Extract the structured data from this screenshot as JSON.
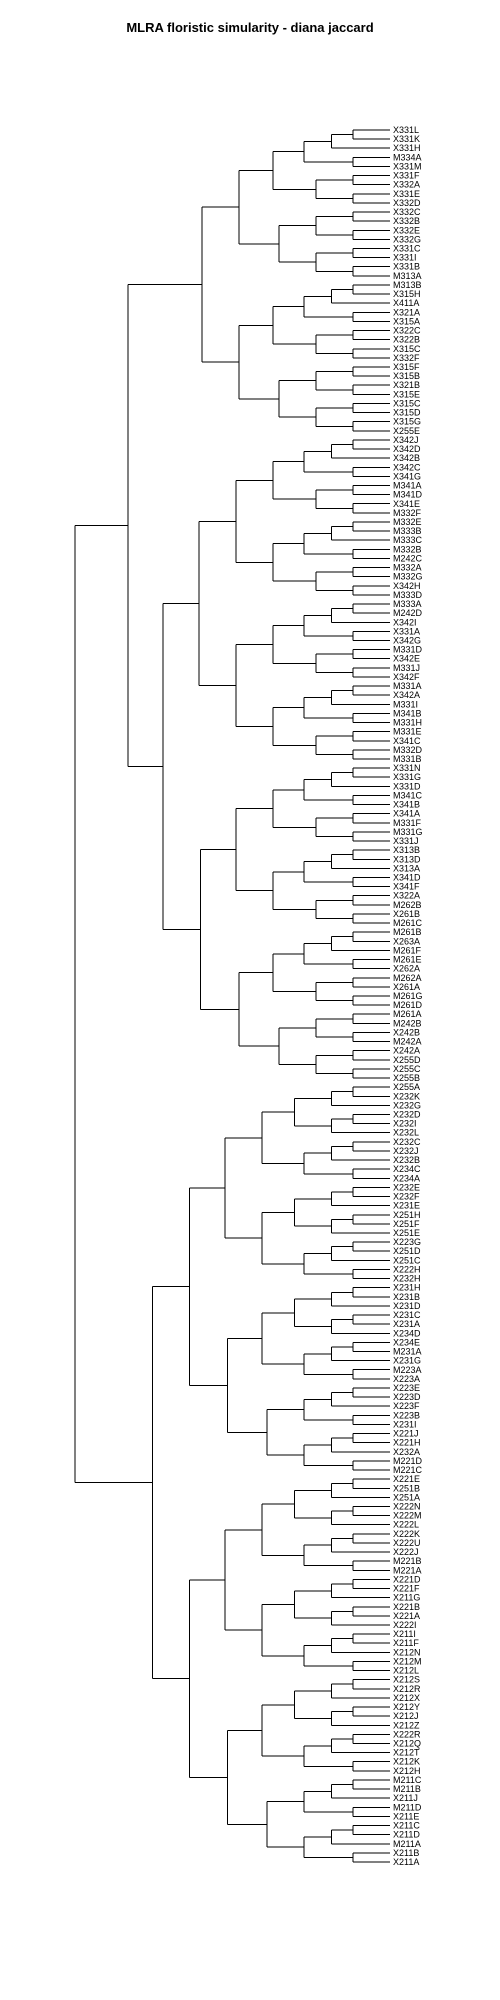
{
  "chart_data": {
    "type": "dendrogram",
    "title": "MLRA floristic simularity - diana jaccard",
    "orientation": "horizontal",
    "leaves": [
      "X331L",
      "X331K",
      "X331H",
      "M334A",
      "X331M",
      "X331F",
      "X332A",
      "X331E",
      "X332D",
      "X332C",
      "X332B",
      "X332E",
      "X332G",
      "X331C",
      "X331I",
      "X331B",
      "M313A",
      "M313B",
      "X315H",
      "X411A",
      "X321A",
      "X315A",
      "X322C",
      "X322B",
      "X315C",
      "X332F",
      "X315F",
      "X315B",
      "X321B",
      "X315E",
      "X315C",
      "X315D",
      "X315G",
      "X255E",
      "X342J",
      "X342D",
      "X342B",
      "X342C",
      "X341G",
      "M341A",
      "M341D",
      "X341E",
      "M332F",
      "M332E",
      "M333B",
      "M333C",
      "M332B",
      "M242C",
      "M332A",
      "M332G",
      "X342H",
      "M333D",
      "M333A",
      "M242D",
      "X342I",
      "X331A",
      "X342G",
      "M331D",
      "X342E",
      "M331J",
      "X342F",
      "M331A",
      "X342A",
      "M331I",
      "M341B",
      "M331H",
      "M331E",
      "X341C",
      "M332D",
      "M331B",
      "X331N",
      "X331G",
      "X331D",
      "M341C",
      "X341B",
      "X341A",
      "M331F",
      "M331G",
      "X331J",
      "X313B",
      "X313D",
      "X313A",
      "X341D",
      "X341F",
      "X322A",
      "M262B",
      "X261B",
      "M261C",
      "M261B",
      "X263A",
      "M261F",
      "M261E",
      "X262A",
      "M262A",
      "X261A",
      "M261G",
      "M261D",
      "M261A",
      "M242B",
      "X242B",
      "M242A",
      "X242A",
      "X255D",
      "X255C",
      "X255B",
      "X255A",
      "X232K",
      "X232G",
      "X232D",
      "X232I",
      "X232L",
      "X232C",
      "X232J",
      "X232B",
      "X234C",
      "X234A",
      "X232E",
      "X232F",
      "X231E",
      "X251H",
      "X251F",
      "X251E",
      "X223G",
      "X251D",
      "X251C",
      "X222H",
      "X232H",
      "X231H",
      "X231B",
      "X231D",
      "X231C",
      "X231A",
      "X234D",
      "X234E",
      "M231A",
      "X231G",
      "M223A",
      "X223A",
      "X223E",
      "X223D",
      "X223F",
      "X223B",
      "X231I",
      "X221J",
      "X221H",
      "X232A",
      "M221D",
      "M221C",
      "X221E",
      "X251B",
      "X251A",
      "X222N",
      "X222M",
      "X222L",
      "X222K",
      "X222U",
      "X222J",
      "M221B",
      "M221A",
      "X221D",
      "X221F",
      "X211G",
      "X221B",
      "X221A",
      "X222I",
      "X211I",
      "X211F",
      "X212N",
      "X212M",
      "X212L",
      "X212S",
      "X212R",
      "X212X",
      "X212Y",
      "X212J",
      "X212Z",
      "X222R",
      "X212Q",
      "X212T",
      "X212K",
      "X212H",
      "M211C",
      "M211B",
      "X211J",
      "M211D",
      "X211E",
      "X211C",
      "X211D",
      "M211A",
      "X211B",
      "X211A"
    ]
  }
}
